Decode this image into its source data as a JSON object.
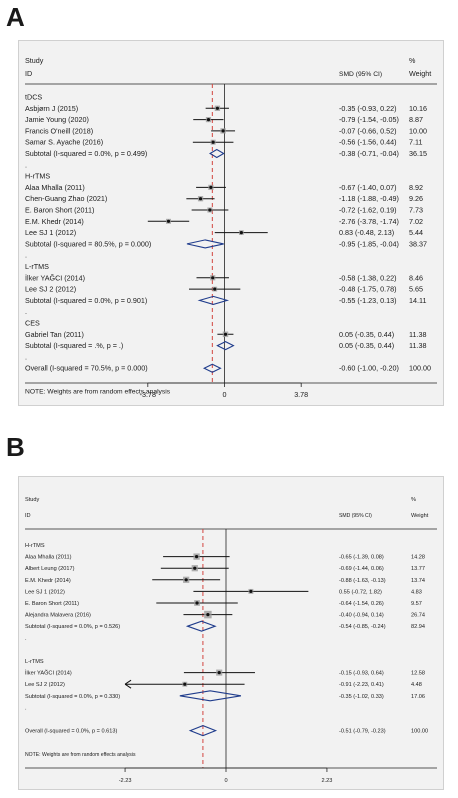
{
  "chart_data": [
    {
      "type": "forest",
      "panel_label": "A",
      "header": {
        "study": "Study",
        "id": "ID",
        "effect": "SMD (95% CI)",
        "pct": "%",
        "weight": "Weight"
      },
      "xlim": [
        -5.2,
        5.2
      ],
      "ticks": [
        {
          "v": -3.78,
          "label": "-3.78"
        },
        {
          "v": 0,
          "label": "0"
        },
        {
          "v": 3.78,
          "label": "3.78"
        }
      ],
      "overall_line": -0.6,
      "rows": [
        {
          "kind": "group",
          "label": "tDCS"
        },
        {
          "kind": "study",
          "label": "Asbjørn J (2015)",
          "est": -0.35,
          "lo": -0.93,
          "hi": 0.22,
          "ci_text": "-0.35 (-0.93, 0.22)",
          "weight": "10.16",
          "w": 10.16
        },
        {
          "kind": "study",
          "label": "Jamie Young (2020)",
          "est": -0.79,
          "lo": -1.54,
          "hi": -0.05,
          "ci_text": "-0.79 (-1.54, -0.05)",
          "weight": "8.87",
          "w": 8.87
        },
        {
          "kind": "study",
          "label": "Francis O'neill (2018)",
          "est": -0.07,
          "lo": -0.66,
          "hi": 0.52,
          "ci_text": "-0.07 (-0.66, 0.52)",
          "weight": "10.00",
          "w": 10.0
        },
        {
          "kind": "study",
          "label": "Samar S. Ayache (2016)",
          "est": -0.56,
          "lo": -1.56,
          "hi": 0.44,
          "ci_text": "-0.56 (-1.56, 0.44)",
          "weight": "7.11",
          "w": 7.11
        },
        {
          "kind": "subtotal",
          "label": "Subtotal  (I-squared = 0.0%, p = 0.499)",
          "est": -0.38,
          "lo": -0.71,
          "hi": -0.04,
          "ci_text": "-0.38 (-0.71, -0.04)",
          "weight": "36.15"
        },
        {
          "kind": "dot",
          "label": "."
        },
        {
          "kind": "group",
          "label": "H-rTMS"
        },
        {
          "kind": "study",
          "label": "Alaa Mhalla (2011)",
          "est": -0.67,
          "lo": -1.4,
          "hi": 0.07,
          "ci_text": "-0.67 (-1.40, 0.07)",
          "weight": "8.92",
          "w": 8.92
        },
        {
          "kind": "study",
          "label": "Chen-Guang Zhao (2021)",
          "est": -1.18,
          "lo": -1.88,
          "hi": -0.49,
          "ci_text": "-1.18 (-1.88, -0.49)",
          "weight": "9.26",
          "w": 9.26
        },
        {
          "kind": "study",
          "label": "E. Baron Short (2011)",
          "est": -0.72,
          "lo": -1.62,
          "hi": 0.19,
          "ci_text": "-0.72 (-1.62, 0.19)",
          "weight": "7.73",
          "w": 7.73
        },
        {
          "kind": "study",
          "label": "E.M. Khedr  (2014)",
          "est": -2.76,
          "lo": -3.78,
          "hi": -1.74,
          "ci_text": "-2.76 (-3.78, -1.74)",
          "weight": "7.02",
          "w": 7.02
        },
        {
          "kind": "study",
          "label": "Lee SJ 1 (2012)",
          "est": 0.83,
          "lo": -0.48,
          "hi": 2.13,
          "ci_text": "0.83 (-0.48, 2.13)",
          "weight": "5.44",
          "w": 5.44
        },
        {
          "kind": "subtotal",
          "label": "Subtotal  (I-squared = 80.5%, p = 0.000)",
          "est": -0.95,
          "lo": -1.85,
          "hi": -0.04,
          "ci_text": "-0.95 (-1.85, -0.04)",
          "weight": "38.37"
        },
        {
          "kind": "dot",
          "label": "."
        },
        {
          "kind": "group",
          "label": "L-rTMS"
        },
        {
          "kind": "study",
          "label": "İlker YAĞCI (2014)",
          "est": -0.58,
          "lo": -1.38,
          "hi": 0.22,
          "ci_text": "-0.58 (-1.38, 0.22)",
          "weight": "8.46",
          "w": 8.46
        },
        {
          "kind": "study",
          "label": "Lee SJ 2 (2012)",
          "est": -0.48,
          "lo": -1.75,
          "hi": 0.78,
          "ci_text": "-0.48 (-1.75, 0.78)",
          "weight": "5.65",
          "w": 5.65
        },
        {
          "kind": "subtotal",
          "label": "Subtotal  (I-squared = 0.0%, p = 0.901)",
          "est": -0.55,
          "lo": -1.23,
          "hi": 0.13,
          "ci_text": "-0.55 (-1.23, 0.13)",
          "weight": "14.11"
        },
        {
          "kind": "dot",
          "label": "."
        },
        {
          "kind": "group",
          "label": "CES"
        },
        {
          "kind": "study",
          "label": "Gabriel Tan  (2011)",
          "est": 0.05,
          "lo": -0.35,
          "hi": 0.44,
          "ci_text": "0.05 (-0.35, 0.44)",
          "weight": "11.38",
          "w": 11.38
        },
        {
          "kind": "subtotal",
          "label": "Subtotal  (I-squared = .%, p = .)",
          "est": 0.05,
          "lo": -0.35,
          "hi": 0.44,
          "ci_text": "0.05 (-0.35, 0.44)",
          "weight": "11.38"
        },
        {
          "kind": "dot",
          "label": "."
        },
        {
          "kind": "overall",
          "label": "Overall  (I-squared = 70.5%, p = 0.000)",
          "est": -0.6,
          "lo": -1.0,
          "hi": -0.2,
          "ci_text": "-0.60 (-1.00, -0.20)",
          "weight": "100.00"
        },
        {
          "kind": "gap"
        },
        {
          "kind": "note",
          "label": "NOTE: Weights are from random effects analysis"
        }
      ]
    },
    {
      "type": "forest",
      "panel_label": "B",
      "header": {
        "study": "Study",
        "id": "ID",
        "effect": "SMD (95% CI)",
        "pct": "%",
        "weight": "Weight"
      },
      "xlim": [
        -2.85,
        2.85
      ],
      "ticks": [
        {
          "v": -2.23,
          "label": "-2.23"
        },
        {
          "v": 0,
          "label": "0"
        },
        {
          "v": 2.23,
          "label": "2.23"
        }
      ],
      "overall_line": -0.51,
      "rows": [
        {
          "kind": "group",
          "label": "H-rTMS"
        },
        {
          "kind": "study",
          "label": "Alaa Mhalla (2011)",
          "est": -0.65,
          "lo": -1.39,
          "hi": 0.08,
          "ci_text": "-0.65 (-1.39, 0.08)",
          "weight": "14.28",
          "w": 14.28
        },
        {
          "kind": "study",
          "label": "Albert Leung  (2017)",
          "est": -0.69,
          "lo": -1.44,
          "hi": 0.06,
          "ci_text": "-0.69 (-1.44, 0.06)",
          "weight": "13.77",
          "w": 13.77
        },
        {
          "kind": "study",
          "label": "E.M. Khedr (2014)",
          "est": -0.88,
          "lo": -1.63,
          "hi": -0.13,
          "ci_text": "-0.88 (-1.63, -0.13)",
          "weight": "13.74",
          "w": 13.74
        },
        {
          "kind": "study",
          "label": "Lee SJ 1 (2012)",
          "est": 0.55,
          "lo": -0.72,
          "hi": 1.82,
          "ci_text": "0.55 (-0.72, 1.82)",
          "weight": "4.83",
          "w": 4.83
        },
        {
          "kind": "study",
          "label": "E. Baron Short (2011)",
          "est": -0.64,
          "lo": -1.54,
          "hi": 0.26,
          "ci_text": "-0.64 (-1.54, 0.26)",
          "weight": "9.57",
          "w": 9.57
        },
        {
          "kind": "study",
          "label": "Alejandra Malavera  (2016)",
          "est": -0.4,
          "lo": -0.94,
          "hi": 0.14,
          "ci_text": "-0.40 (-0.94, 0.14)",
          "weight": "26.74",
          "w": 26.74
        },
        {
          "kind": "subtotal",
          "label": "Subtotal  (I-squared = 0.0%, p = 0.526)",
          "est": -0.54,
          "lo": -0.85,
          "hi": -0.24,
          "ci_text": "-0.54 (-0.85, -0.24)",
          "weight": "82.94"
        },
        {
          "kind": "dot",
          "label": "."
        },
        {
          "kind": "gap"
        },
        {
          "kind": "group",
          "label": "L-rTMS"
        },
        {
          "kind": "study",
          "label": "İlker YAĞCI (2014)",
          "est": -0.15,
          "lo": -0.93,
          "hi": 0.64,
          "ci_text": "-0.15 (-0.93, 0.64)",
          "weight": "12.58",
          "w": 12.58
        },
        {
          "kind": "study",
          "label": "Lee SJ  2 (2012)",
          "est": -0.91,
          "lo": -2.23,
          "hi": 0.41,
          "ci_text": "-0.91 (-2.23, 0.41)",
          "weight": "4.48",
          "w": 4.48,
          "arrow_left": true
        },
        {
          "kind": "subtotal",
          "label": "Subtotal  (I-squared = 0.0%, p = 0.330)",
          "est": -0.35,
          "lo": -1.02,
          "hi": 0.33,
          "ci_text": "-0.35 (-1.02, 0.33)",
          "weight": "17.06"
        },
        {
          "kind": "dot",
          "label": "."
        },
        {
          "kind": "gap"
        },
        {
          "kind": "overall",
          "label": "Overall  (I-squared = 0.0%, p = 0.613)",
          "est": -0.51,
          "lo": -0.79,
          "hi": -0.23,
          "ci_text": "-0.51 (-0.79, -0.23)",
          "weight": "100.00"
        },
        {
          "kind": "gap"
        },
        {
          "kind": "note",
          "label": "NOTE: Weights are from random effects analysis"
        }
      ]
    }
  ]
}
